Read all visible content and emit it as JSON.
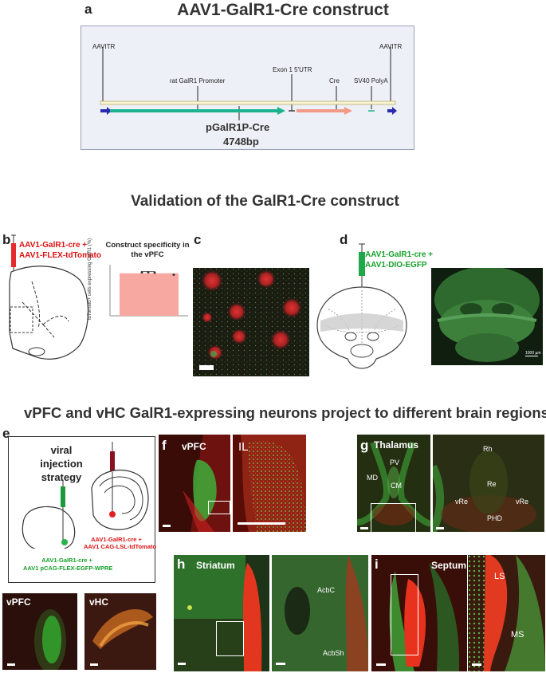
{
  "panel_a": {
    "letter": "a",
    "title": "AAV1-GalR1-Cre construct",
    "labels": {
      "itr_left": "AAVITR",
      "itr_right": "AAVITR",
      "promoter": "rat GalR1 Promoter",
      "exon": "Exon 1 5'UTR",
      "cre": "Cre",
      "polya": "SV40 PolyA",
      "plasmid_name": "pGalR1P-Cre",
      "plasmid_size": "4748bp"
    }
  },
  "section_validation": {
    "title": "Validation of the GalR1-Cre construct"
  },
  "panel_b": {
    "letter": "b",
    "injection_line1": "AAV1-GalR1-cre +",
    "injection_line2": "AAV1-FLEX-tdTomato",
    "chart_title_line1": "Construct specificity in",
    "chart_title_line2": "the vPFC",
    "chart_ylabel": "tdTomato+ cells expressing GalR1 (%)"
  },
  "chart_data": {
    "type": "bar",
    "categories": [
      ""
    ],
    "values": [
      86
    ],
    "points": [
      88,
      88,
      87,
      83
    ],
    "ylim": [
      0,
      100
    ],
    "bar_color": "#f7a8a0",
    "title": "Construct specificity in the vPFC",
    "xlabel": "",
    "ylabel": "tdTomato+ cells expressing GalR1 (%)"
  },
  "panel_c": {
    "letter": "c"
  },
  "panel_d": {
    "letter": "d",
    "injection_line1": "AAV1-GalR1-cre +",
    "injection_line2": "AAV1-DIO-EGFP",
    "scale_text": "1000 µm"
  },
  "section_projection": {
    "title": "vPFC and vHC GalR1-expressing neurons project to different brain regions"
  },
  "panel_e": {
    "letter": "e",
    "strategy_line1": "viral injection",
    "strategy_line2": "strategy",
    "red_line1": "AAV1-GalR1-cre +",
    "red_line2": "AAV1 CAG-LSL-tdTomato",
    "green_line1": "AAV1-GalR1-cre +",
    "green_line2": "AAV1 pCAG-FLEX-EGFP-WPRE",
    "img1_label": "vPFC",
    "img2_label": "vHC"
  },
  "panel_f": {
    "letter": "f",
    "label_left": "vPFC",
    "label_zoom": "IL"
  },
  "panel_g": {
    "letter": "g",
    "title": "Thalamus",
    "left_labels": {
      "pv": "PV",
      "md": "MD",
      "cm": "CM"
    },
    "right_labels": {
      "rh": "Rh",
      "re": "Re",
      "vre_left": "vRe",
      "vre_right": "vRe",
      "phd": "PHD"
    }
  },
  "panel_h": {
    "letter": "h",
    "title": "Striatum",
    "zoom_labels": {
      "acbc": "AcbC",
      "acbsh": "AcbSh"
    }
  },
  "panel_i": {
    "letter": "i",
    "title": "Septum",
    "zoom_labels": {
      "ls": "LS",
      "ms": "MS"
    }
  }
}
